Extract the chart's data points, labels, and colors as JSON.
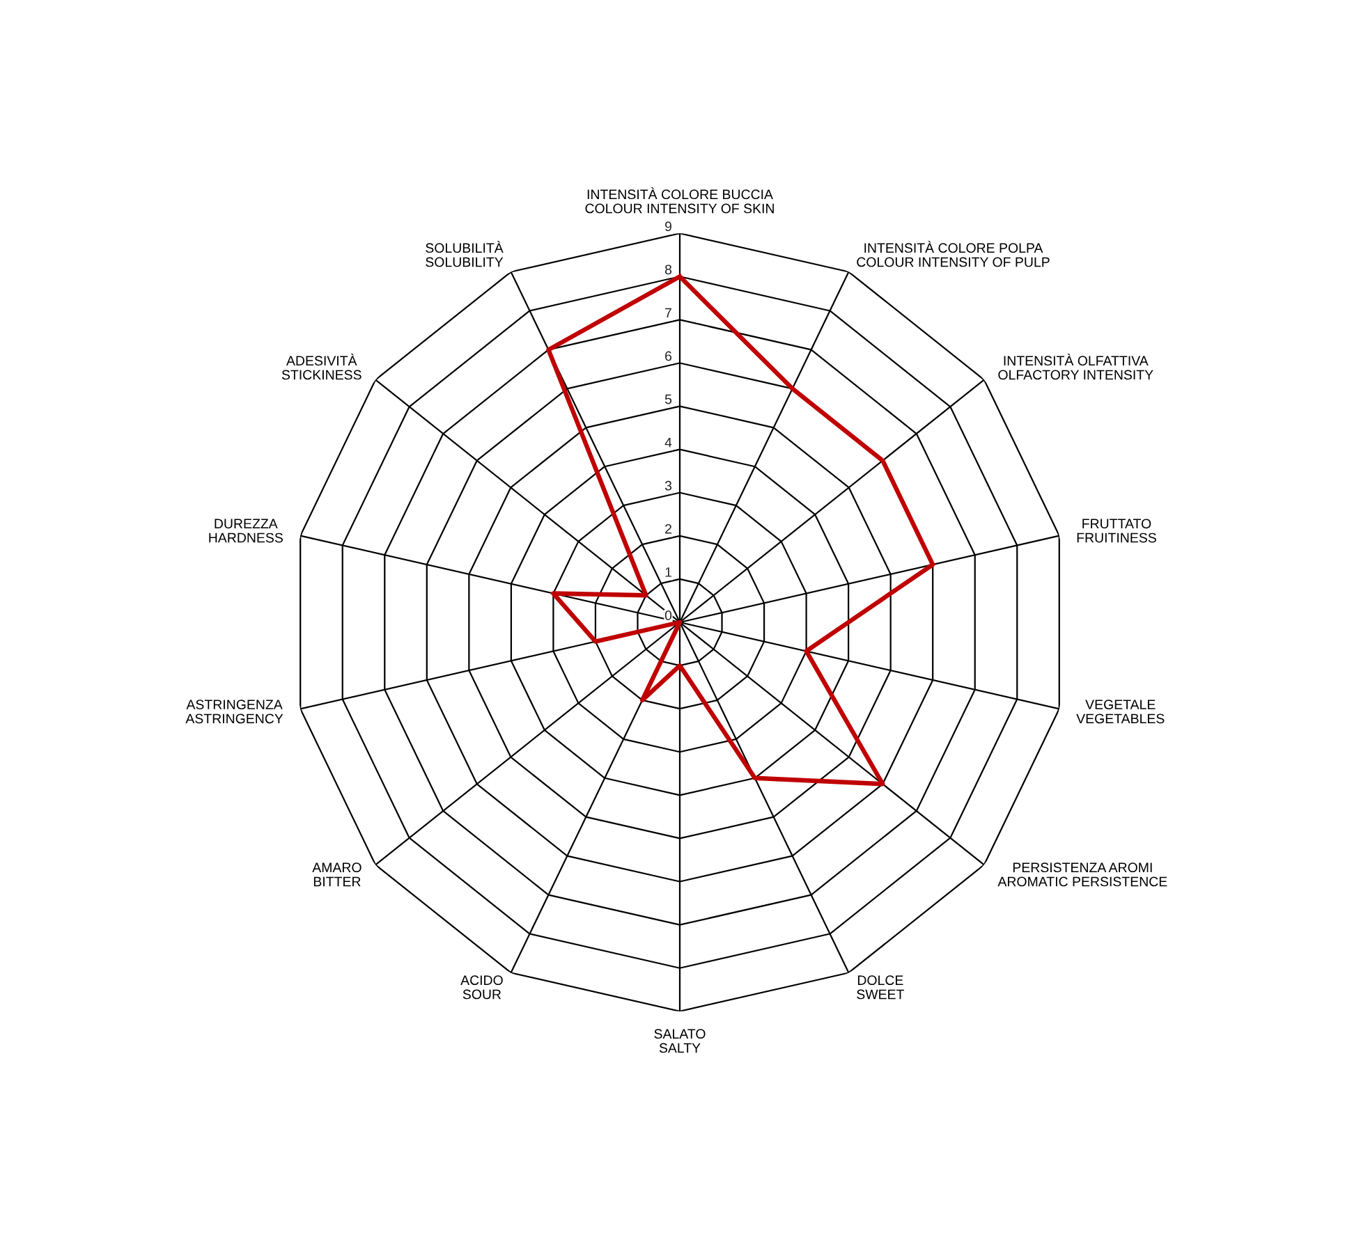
{
  "chart_data": {
    "type": "radar",
    "categories": [
      "INTENSITÀ COLORE BUCCIA\nCOLOUR INTENSITY OF SKIN",
      "INTENSITÀ COLORE POLPA\nCOLOUR INTENSITY OF PULP",
      "INTENSITÀ OLFATTIVA\nOLFACTORY INTENSITY",
      "FRUTTATO\nFRUITINESS",
      "VEGETALE\nVEGETABLES",
      "PERSISTENZA AROMI\nAROMATIC PERSISTENCE",
      "DOLCE\nSWEET",
      "SALATO\nSALTY",
      "ACIDO\nSOUR",
      "AMARO\nBITTER",
      "ASTRINGENZA\nASTRINGENCY",
      "DUREZZA\nHARDNESS",
      "ADESIVITÀ\nSTICKINESS",
      "SOLUBILITÀ\nSOLUBILITY"
    ],
    "series": [
      {
        "color": "#c00000",
        "values": [
          8,
          6,
          6,
          6,
          3,
          6,
          4,
          1,
          2,
          0,
          2,
          3,
          1,
          7
        ]
      }
    ],
    "ylim": [
      0,
      9
    ],
    "yticks": [
      0,
      1,
      2,
      3,
      4,
      5,
      6,
      7,
      8,
      9
    ],
    "grid": true
  }
}
